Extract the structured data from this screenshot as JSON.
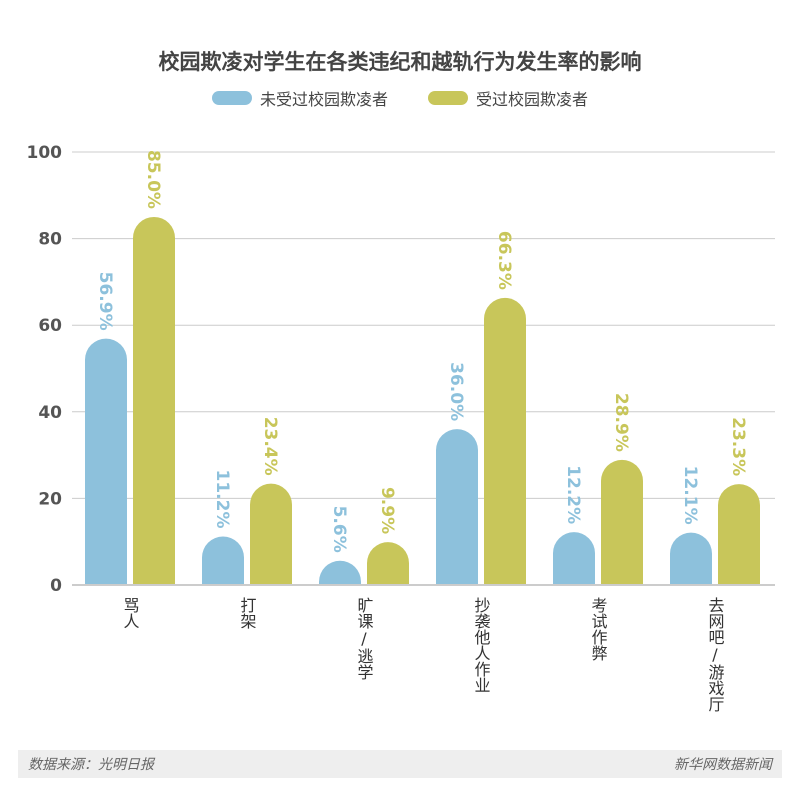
{
  "chart_data": {
    "type": "bar",
    "title": "校园欺凌对学生在各类违纪和越轨行为发生率的影响",
    "categories": [
      "骂人",
      "打架",
      "旷课/逃学",
      "抄袭他人作业",
      "考试作弊",
      "去网吧/游戏厅"
    ],
    "series": [
      {
        "name": "未受过校园欺凌者",
        "color": "#8dc1dc",
        "values": [
          56.9,
          11.2,
          5.6,
          36.0,
          12.2,
          12.1
        ],
        "labels": [
          "56.9%",
          "11.2%",
          "5.6%",
          "36.0%",
          "12.2%",
          "12.1%"
        ]
      },
      {
        "name": "受过校园欺凌者",
        "color": "#c8c65a",
        "values": [
          85.0,
          23.4,
          9.9,
          66.3,
          28.9,
          23.3
        ],
        "labels": [
          "85.0%",
          "23.4%",
          "9.9%",
          "66.3%",
          "28.9%",
          "23.3%"
        ]
      }
    ],
    "ylim": [
      0,
      100
    ],
    "yticks": [
      "0",
      "20",
      "40",
      "60",
      "80",
      "100"
    ],
    "grid": true,
    "legend": "top-center",
    "xlabel": "",
    "ylabel": ""
  },
  "footer": {
    "source": "数据来源：光明日报",
    "credit": "新华网数据新闻"
  }
}
